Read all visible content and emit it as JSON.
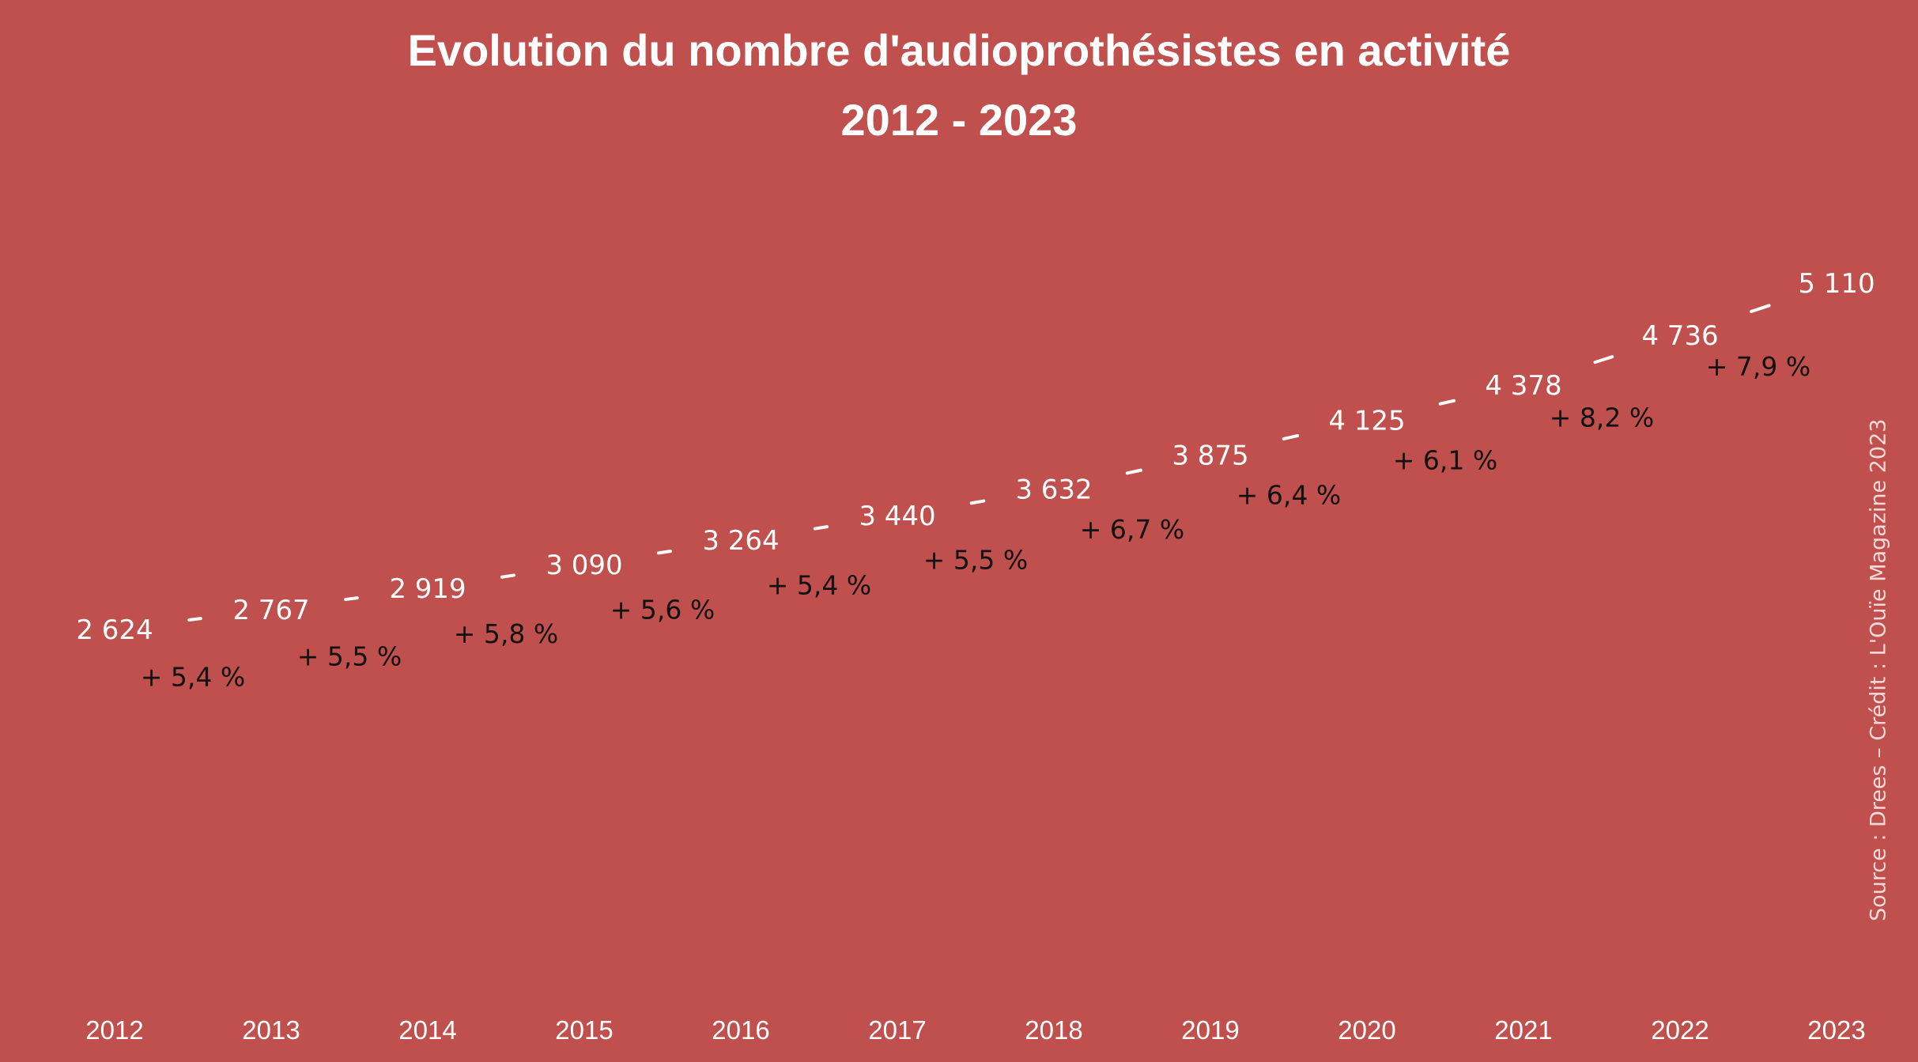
{
  "title": {
    "line1": "Evolution du nombre d'audioprothésistes en activité",
    "line2": "2012 - 2023"
  },
  "source": "Source : Drees – Crédit : L'Ouïe Magazine 2023",
  "colors": {
    "background": "#c0504d",
    "line": "#ffffff",
    "value_label": "#ffffff",
    "growth_label": "#111111"
  },
  "chart_data": {
    "type": "line",
    "title": "Evolution du nombre d'audioprothésistes en activité 2012 - 2023",
    "x": [
      "2012",
      "2013",
      "2014",
      "2015",
      "2016",
      "2017",
      "2018",
      "2019",
      "2020",
      "2021",
      "2022",
      "2023"
    ],
    "values": [
      2624,
      2767,
      2919,
      3090,
      3264,
      3440,
      3632,
      3875,
      4125,
      4378,
      4736,
      5110
    ],
    "value_labels": [
      "2 624",
      "2 767",
      "2 919",
      "3 090",
      "3 264",
      "3 440",
      "3 632",
      "3 875",
      "4 125",
      "4 378",
      "4 736",
      "5 110"
    ],
    "growth_labels": [
      "+ 5,4 %",
      "+ 5,5 %",
      "+ 5,8 %",
      "+ 5,6 %",
      "+ 5,4 %",
      "+ 5,5 %",
      "+ 6,7 %",
      "+ 6,4 %",
      "+ 6,1 %",
      "+ 8,2 %",
      "+ 7,9 %"
    ],
    "xlabel": "",
    "ylabel": "",
    "grid": false,
    "legend": "none"
  }
}
